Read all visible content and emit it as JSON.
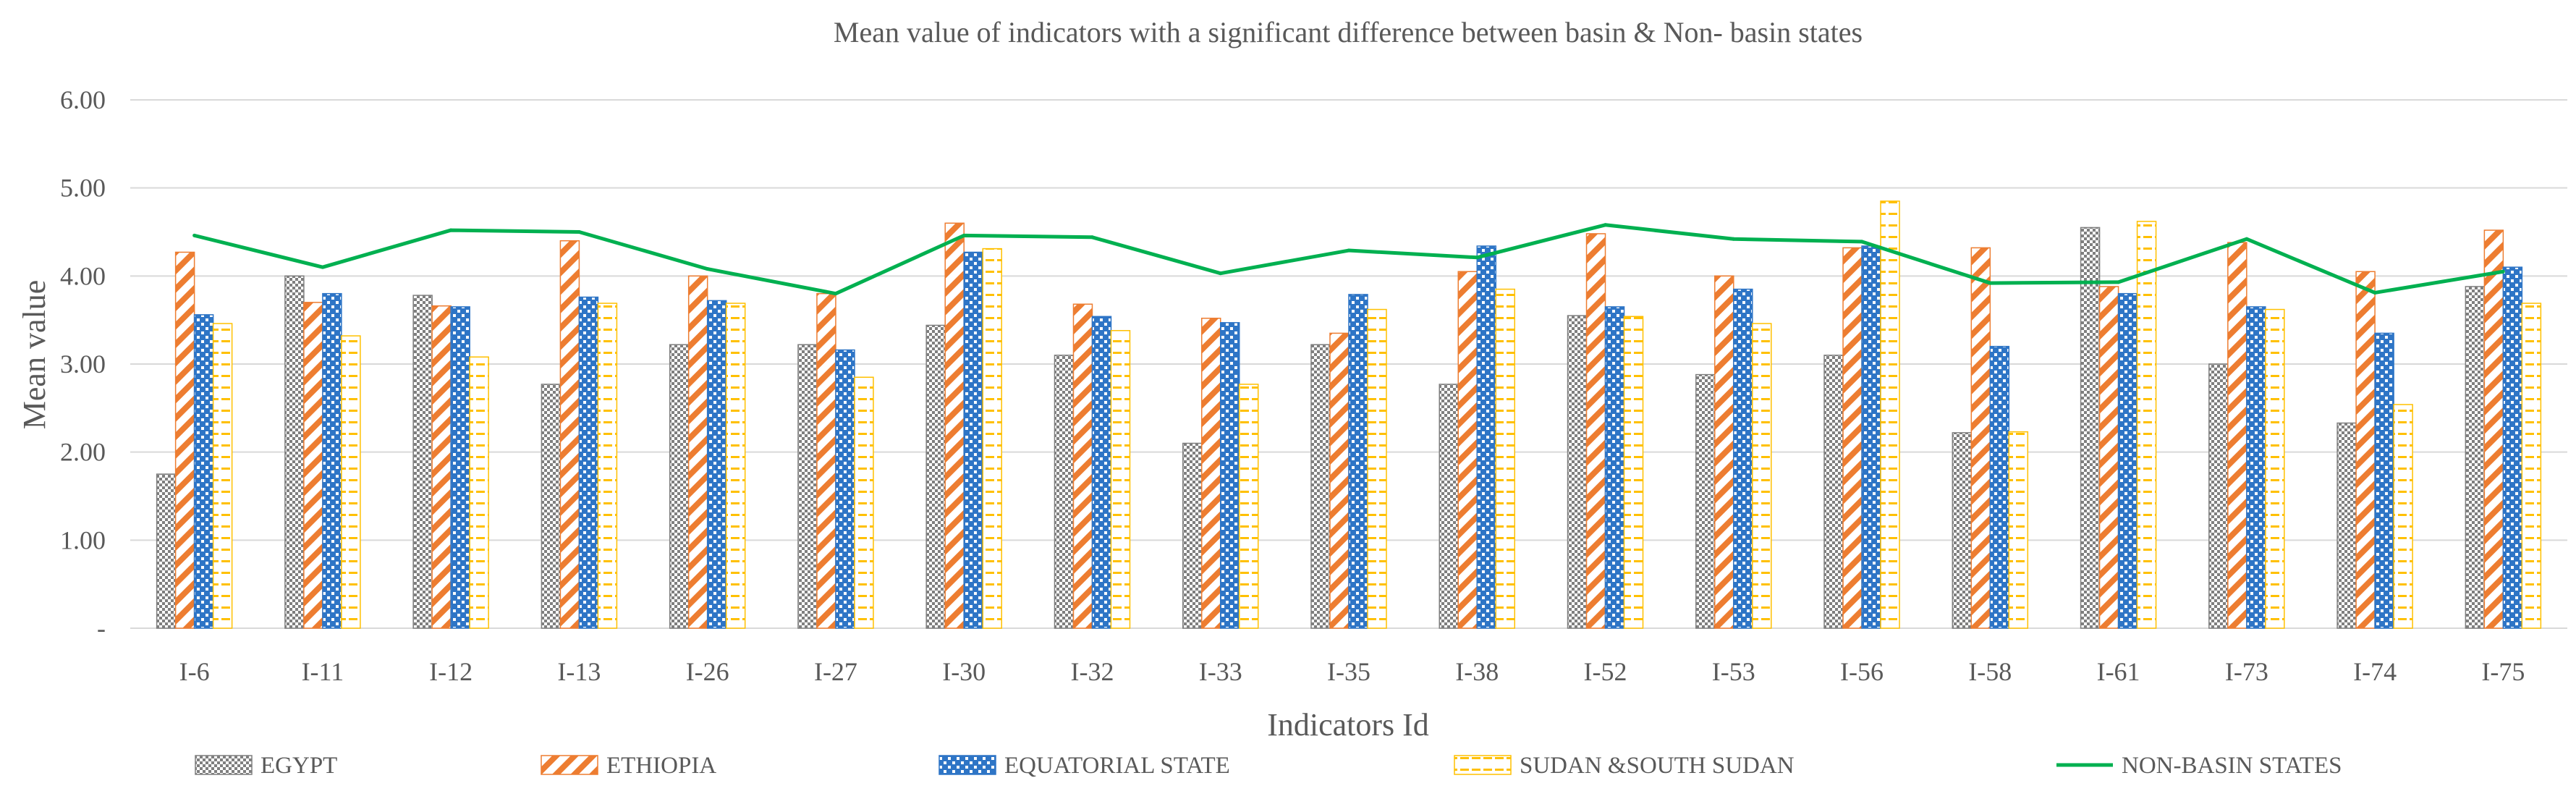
{
  "chart_data": {
    "type": "bar",
    "title": "Mean value of indicators with a significant difference between basin & Non- basin states",
    "xlabel": "Indicators Id",
    "ylabel": "Mean value",
    "ylim": [
      0,
      6
    ],
    "yticks": [
      0,
      1,
      2,
      3,
      4,
      5,
      6
    ],
    "ytick_labels": [
      "-",
      "1.00",
      "2.00",
      "3.00",
      "4.00",
      "5.00",
      "6.00"
    ],
    "grid": true,
    "legend_position": "bottom",
    "categories": [
      "I-6",
      "I-11",
      "I-12",
      "I-13",
      "I-26",
      "I-27",
      "I-30",
      "I-32",
      "I-33",
      "I-35",
      "I-38",
      "I-52",
      "I-53",
      "I-56",
      "I-58",
      "I-61",
      "I-73",
      "I-74",
      "I-75"
    ],
    "series": [
      {
        "name": "EGYPT",
        "type": "bar",
        "pattern": "checker",
        "color": "#7f7f7f",
        "values": [
          1.75,
          4.0,
          3.78,
          2.77,
          3.22,
          3.22,
          3.44,
          3.1,
          2.1,
          3.22,
          2.77,
          3.55,
          2.88,
          3.1,
          2.22,
          4.55,
          3.0,
          2.33,
          3.88
        ]
      },
      {
        "name": "ETHIOPIA",
        "type": "bar",
        "pattern": "diagonal",
        "color": "#ed7d31",
        "values": [
          4.27,
          3.7,
          3.66,
          4.4,
          4.0,
          3.8,
          4.6,
          3.68,
          3.52,
          3.35,
          4.05,
          4.48,
          4.0,
          4.32,
          4.32,
          3.88,
          4.38,
          4.05,
          4.52
        ]
      },
      {
        "name": "EQUATORIAL STATE",
        "type": "bar",
        "pattern": "grid",
        "color": "#2e75c6",
        "values": [
          3.56,
          3.8,
          3.65,
          3.76,
          3.72,
          3.16,
          4.27,
          3.54,
          3.47,
          3.79,
          4.34,
          3.65,
          3.85,
          4.34,
          3.2,
          3.8,
          3.65,
          3.35,
          4.1
        ]
      },
      {
        "name": "SUDAN &SOUTH SUDAN",
        "type": "bar",
        "pattern": "dashes",
        "color": "#ffc000",
        "values": [
          3.46,
          3.32,
          3.08,
          3.69,
          3.69,
          2.85,
          4.31,
          3.38,
          2.77,
          3.62,
          3.85,
          3.54,
          3.46,
          4.85,
          2.23,
          4.62,
          3.62,
          2.54,
          3.69
        ]
      },
      {
        "name": "NON-BASIN STATES",
        "type": "line",
        "color": "#00b050",
        "values": [
          4.46,
          4.1,
          4.52,
          4.5,
          4.08,
          3.8,
          4.46,
          4.44,
          4.03,
          4.29,
          4.21,
          4.58,
          4.42,
          4.39,
          3.92,
          3.93,
          4.42,
          3.81,
          4.05
        ]
      }
    ]
  }
}
